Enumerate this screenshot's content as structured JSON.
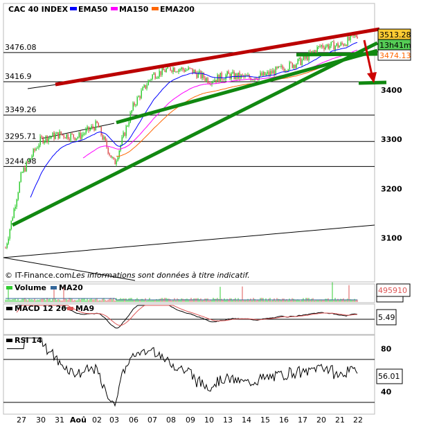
{
  "legend": {
    "title": "CAC 40 INDEX",
    "items": [
      {
        "label": "EMA50",
        "color": "#0000ff"
      },
      {
        "label": "MA150",
        "color": "#ff00ff"
      },
      {
        "label": "EMA200",
        "color": "#ff6600"
      }
    ]
  },
  "badges": {
    "last": "3513.28",
    "time": "13h41m",
    "ref": "3474.13",
    "volume": "495910",
    "macd": "5.49",
    "rsi": "56.01"
  },
  "footer": {
    "copyright": "© IT-Finance.com",
    "disclaimer": "Les informations sont données à titre indicatif."
  },
  "panels": {
    "volume": "Volume",
    "volume_ma": "MA20",
    "macd": "MACD 12 26",
    "macd_ma": "MA9",
    "rsi": "RSI 14"
  },
  "colors": {
    "up": "#33cc33",
    "down": "#dd5555",
    "resistance": "#bb0000",
    "support": "#118811"
  },
  "chart_data": {
    "type": "candlestick",
    "x_ticks": [
      "27",
      "30",
      "31",
      "Aoû",
      "02",
      "03",
      "06",
      "07",
      "08",
      "09",
      "10",
      "13",
      "14",
      "15",
      "16",
      "17",
      "20",
      "21",
      "22"
    ],
    "closes": [
      3230,
      3300,
      3310,
      3305,
      3330,
      3250,
      3370,
      3430,
      3445,
      3440,
      3420,
      3430,
      3425,
      3430,
      3445,
      3460,
      3490,
      3490,
      3513
    ],
    "price_start": 3080,
    "y_ticks": [
      3100,
      3200,
      3300,
      3400
    ],
    "levels": [
      3476.08,
      3416.9,
      3349.26,
      3295.71,
      3244.98
    ],
    "level_labels": [
      "3476.08",
      "3416.9",
      "3349.26",
      "3295.71",
      "3244.98"
    ],
    "rsi_ticks": [
      "80",
      "40"
    ],
    "rsi_bands": [
      70,
      30
    ]
  }
}
